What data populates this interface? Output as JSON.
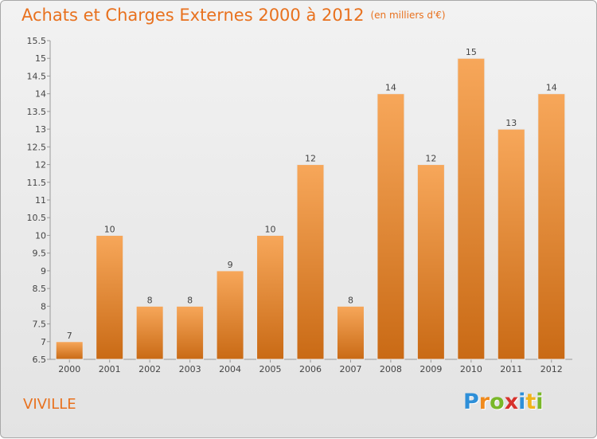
{
  "title": "Achats et Charges Externes 2000 à 2012",
  "unit_label": "(en milliers d'€)",
  "commune": "VIVILLE",
  "logo": {
    "letters": [
      "P",
      "r",
      "o",
      "x",
      "i",
      "t",
      "i"
    ],
    "colors": [
      "#2e8fd8",
      "#f08a1c",
      "#79b829",
      "#d7322c",
      "#2e8fd8",
      "#f0b41c",
      "#79b829"
    ]
  },
  "colors": {
    "accent": "#e8711e",
    "bar_top": "#f7a75a",
    "bar_bottom": "#c96a15"
  },
  "chart_data": {
    "type": "bar",
    "categories": [
      "2000",
      "2001",
      "2002",
      "2003",
      "2004",
      "2005",
      "2006",
      "2007",
      "2008",
      "2009",
      "2010",
      "2011",
      "2012"
    ],
    "values": [
      7,
      10,
      8,
      8,
      9,
      10,
      12,
      8,
      14,
      12,
      15,
      13,
      14
    ],
    "data_labels": [
      "7",
      "10",
      "8",
      "8",
      "9",
      "10",
      "12",
      "8",
      "14",
      "12",
      "15",
      "13",
      "14"
    ],
    "ylim": [
      6.5,
      15.5
    ],
    "yticks": [
      "6.5",
      "7",
      "7.5",
      "8",
      "8.5",
      "9",
      "9.5",
      "10",
      "10.5",
      "11",
      "11.5",
      "12",
      "12.5",
      "13",
      "13.5",
      "14",
      "14.5",
      "15",
      "15.5"
    ],
    "grid": false,
    "legend": "none"
  }
}
